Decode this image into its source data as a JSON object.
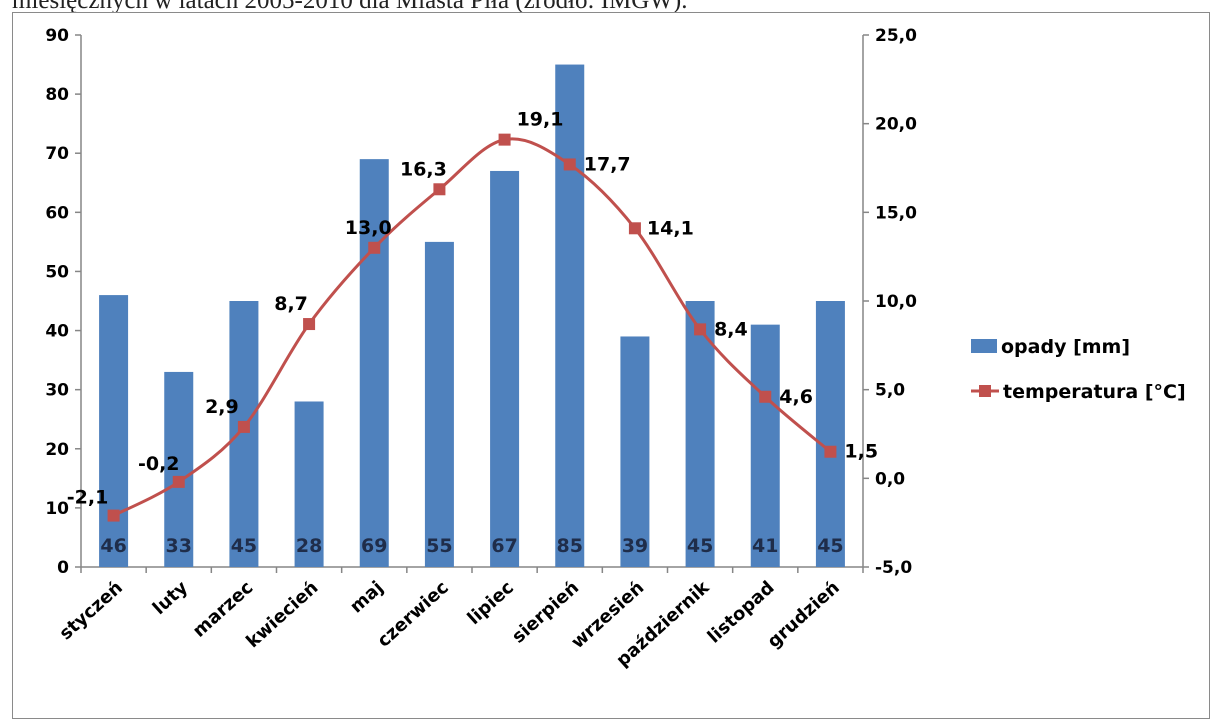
{
  "caption": "miesięcznych w latach 2005-2010 dla Miasta Piła (źródło: IMGW).",
  "chart_data": {
    "type": "bar",
    "categories": [
      "styczeń",
      "luty",
      "marzec",
      "kwiecień",
      "maj",
      "czerwiec",
      "lipiec",
      "sierpień",
      "wrzesień",
      "październik",
      "listopad",
      "grudzień"
    ],
    "series": [
      {
        "name": "opady [mm]",
        "type": "bar",
        "axis": "left",
        "color": "#4f81bd",
        "values": [
          46,
          33,
          45,
          28,
          69,
          55,
          67,
          85,
          39,
          45,
          41,
          45
        ],
        "labels": [
          "46",
          "33",
          "45",
          "28",
          "69",
          "55",
          "67",
          "85",
          "39",
          "45",
          "41",
          "45"
        ]
      },
      {
        "name": "temperatura [°C]",
        "type": "line",
        "axis": "right",
        "color": "#c0504d",
        "values": [
          -2.1,
          -0.2,
          2.9,
          8.7,
          13.0,
          16.3,
          19.1,
          17.7,
          14.1,
          8.4,
          4.6,
          1.5
        ],
        "labels": [
          "-2,1",
          "-0,2",
          "2,9",
          "8,7",
          "13,0",
          "16,3",
          "19,1",
          "17,7",
          "14,1",
          "8,4",
          "4,6",
          "1,5"
        ]
      }
    ],
    "ylim_left": [
      0,
      90
    ],
    "yticks_left": [
      "0",
      "10",
      "20",
      "30",
      "40",
      "50",
      "60",
      "70",
      "80",
      "90"
    ],
    "ylim_right": [
      -5.0,
      25.0
    ],
    "yticks_right": [
      "-5,0",
      "0,0",
      "5,0",
      "10,0",
      "15,0",
      "20,0",
      "25,0"
    ],
    "legend_position": "right",
    "grid": false
  }
}
